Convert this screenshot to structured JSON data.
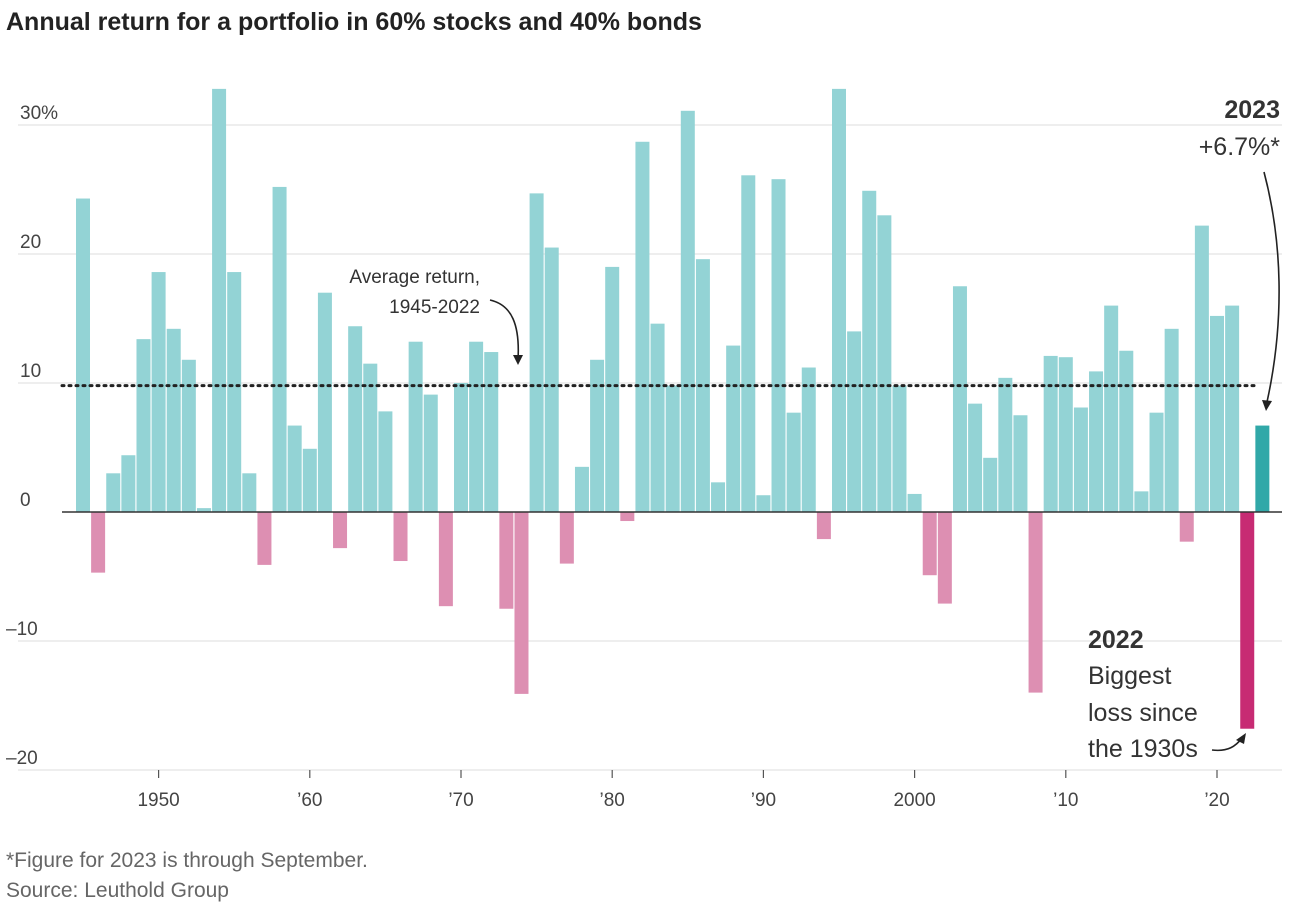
{
  "title": "Annual return for a portfolio in 60% stocks and 40% bonds",
  "chart_data": {
    "type": "bar",
    "x": [
      1945,
      1946,
      1947,
      1948,
      1949,
      1950,
      1951,
      1952,
      1953,
      1954,
      1955,
      1956,
      1957,
      1958,
      1959,
      1960,
      1961,
      1962,
      1963,
      1964,
      1965,
      1966,
      1967,
      1968,
      1969,
      1970,
      1971,
      1972,
      1973,
      1974,
      1975,
      1976,
      1977,
      1978,
      1979,
      1980,
      1981,
      1982,
      1983,
      1984,
      1985,
      1986,
      1987,
      1988,
      1989,
      1990,
      1991,
      1992,
      1993,
      1994,
      1995,
      1996,
      1997,
      1998,
      1999,
      2000,
      2001,
      2002,
      2003,
      2004,
      2005,
      2006,
      2007,
      2008,
      2009,
      2010,
      2011,
      2012,
      2013,
      2014,
      2015,
      2016,
      2017,
      2018,
      2019,
      2020,
      2021,
      2022,
      2023
    ],
    "values": [
      24.3,
      -4.7,
      3.0,
      4.4,
      13.4,
      18.6,
      14.2,
      11.8,
      0.3,
      32.8,
      18.6,
      3.0,
      -4.1,
      25.2,
      6.7,
      4.9,
      17.0,
      -2.8,
      14.4,
      11.5,
      7.8,
      -3.8,
      13.2,
      9.1,
      -7.3,
      10.0,
      13.2,
      12.4,
      -7.5,
      -14.1,
      24.7,
      20.5,
      -4.0,
      3.5,
      11.8,
      19.0,
      -0.7,
      28.7,
      14.6,
      9.8,
      31.1,
      19.6,
      2.3,
      12.9,
      26.1,
      1.3,
      25.8,
      7.7,
      11.2,
      -2.1,
      32.8,
      14.0,
      24.9,
      23.0,
      9.8,
      1.4,
      -4.9,
      -7.1,
      17.5,
      8.4,
      4.2,
      10.4,
      7.5,
      -14.0,
      12.1,
      12.0,
      8.1,
      10.9,
      16.0,
      12.5,
      1.6,
      7.7,
      14.2,
      -2.3,
      22.2,
      15.2,
      16.0,
      -16.8,
      6.7
    ],
    "ylim": [
      -20,
      33
    ],
    "yticks": [
      -20,
      -10,
      0,
      10,
      20,
      30
    ],
    "ytick_labels": [
      "–20",
      "–10",
      "0",
      "10",
      "20",
      "30%"
    ],
    "xticks": [
      1950,
      1960,
      1970,
      1980,
      1990,
      2000,
      2010,
      2020
    ],
    "xtick_labels": [
      "1950",
      "’60",
      "’70",
      "’80",
      "’90",
      "2000",
      "’10",
      "’20"
    ],
    "average": 9.8,
    "grid": true,
    "colors": {
      "positive": "#93d3d5",
      "negative": "#dd8fb2",
      "highlight_2023": "#31a8a8",
      "highlight_2022": "#c72b73",
      "average_line": "#222222",
      "gridline": "#dddddd",
      "zero_line": "#333333"
    }
  },
  "annotations": {
    "average_line1": "Average return,",
    "average_line2": "1945-2022",
    "y2023_year": "2023",
    "y2023_value": "+6.7%*",
    "y2022_year": "2022",
    "y2022_line1": "Biggest",
    "y2022_line2": "loss since",
    "y2022_line3": "the 1930s"
  },
  "footnote": "*Figure for 2023 is through September.",
  "source": "Source: Leuthold Group"
}
